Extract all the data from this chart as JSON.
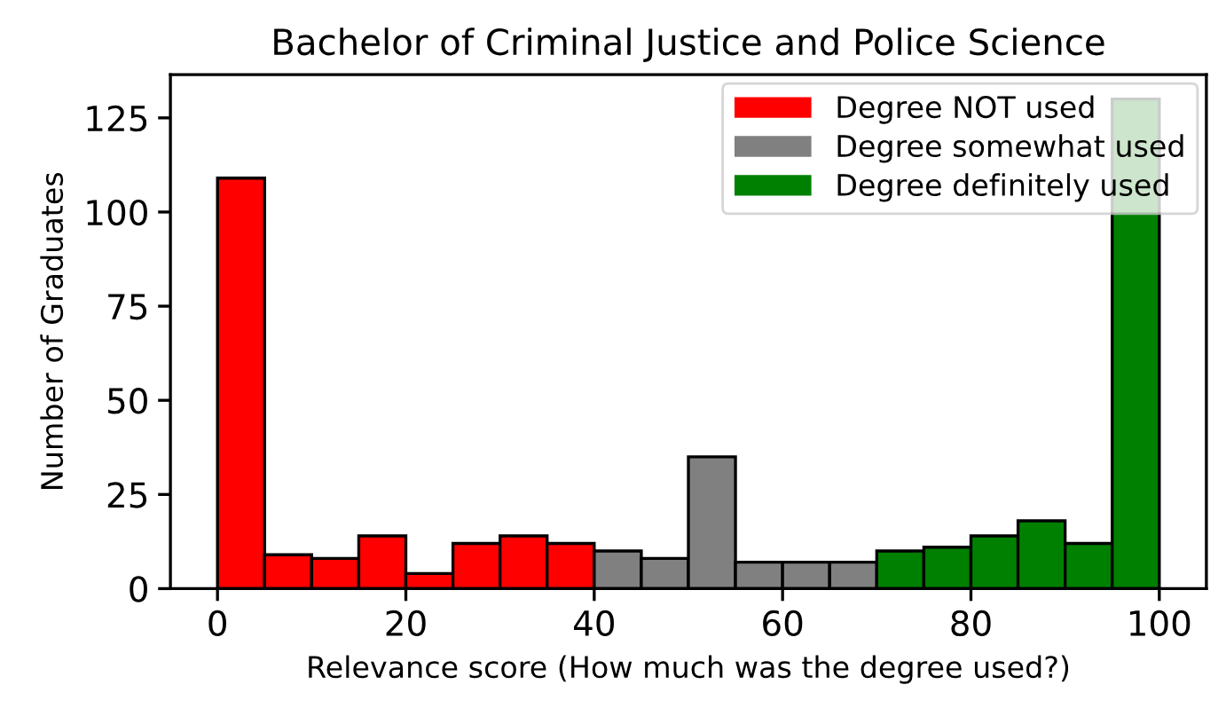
{
  "chart_data": {
    "type": "histogram",
    "title": "Bachelor of Criminal Justice and Police Science",
    "xlabel": "Relevance score (How much was the degree used?)",
    "ylabel": "Number of Graduates",
    "bins": [
      0,
      5,
      10,
      15,
      20,
      25,
      30,
      35,
      40,
      45,
      50,
      55,
      60,
      65,
      70,
      75,
      80,
      85,
      90,
      95,
      100
    ],
    "series": [
      {
        "name": "Degree NOT used",
        "color": "#ff0000",
        "values": [
          109,
          9,
          8,
          14,
          4,
          12,
          14,
          12,
          null,
          null,
          null,
          null,
          null,
          null,
          null,
          null,
          null,
          null,
          null,
          null
        ]
      },
      {
        "name": "Degree somewhat used",
        "color": "#808080",
        "values": [
          null,
          null,
          null,
          null,
          null,
          null,
          null,
          null,
          10,
          8,
          35,
          7,
          7,
          7,
          null,
          null,
          null,
          null,
          null,
          null
        ]
      },
      {
        "name": "Degree definitely used",
        "color": "#008000",
        "values": [
          null,
          null,
          null,
          null,
          null,
          null,
          null,
          null,
          null,
          null,
          null,
          null,
          null,
          null,
          10,
          11,
          14,
          18,
          12,
          130
        ]
      }
    ],
    "xlim": [
      -5,
      105
    ],
    "xticks": [
      0,
      20,
      40,
      60,
      80,
      100
    ],
    "ylim": [
      0,
      136.5
    ],
    "yticks": [
      0,
      25,
      50,
      75,
      100,
      125
    ],
    "legend": "top right"
  }
}
